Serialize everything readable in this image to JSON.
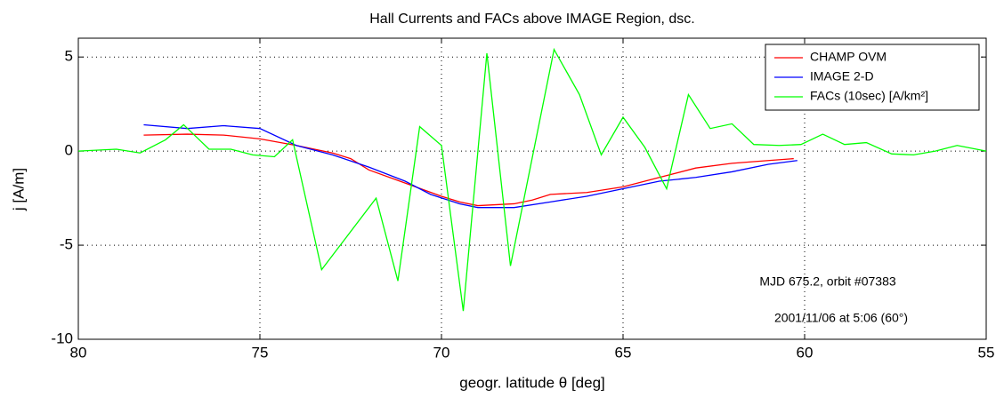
{
  "chart_data": {
    "type": "line",
    "title": "Hall Currents and FACs above IMAGE Region, dsc.",
    "x_label": "geogr. latitude θ [deg]",
    "y_label": "j [A/m]",
    "xlim": [
      80,
      55
    ],
    "ylim": [
      -10,
      6
    ],
    "xticks": [
      80,
      75,
      70,
      65,
      60,
      55
    ],
    "yticks": [
      -10,
      -5,
      0,
      5
    ],
    "grid": true,
    "legend": "upper right",
    "annotations": [
      "MJD 675.2, orbit #07383",
      "2001/11/06 at  5:06 (60°)"
    ],
    "series": [
      {
        "name": "CHAMP OVM",
        "color": "#ff0000",
        "x": [
          78.2,
          77,
          76,
          75,
          74,
          73,
          72.5,
          72,
          71,
          70,
          69.5,
          69,
          68,
          67.5,
          67,
          66,
          65,
          64,
          63,
          62,
          61,
          60.3
        ],
        "values": [
          0.85,
          0.9,
          0.85,
          0.65,
          0.3,
          -0.1,
          -0.4,
          -1.0,
          -1.7,
          -2.4,
          -2.7,
          -2.9,
          -2.8,
          -2.6,
          -2.3,
          -2.2,
          -1.9,
          -1.4,
          -0.9,
          -0.65,
          -0.5,
          -0.4
        ]
      },
      {
        "name": " IMAGE 2-D",
        "color": "#0000ff",
        "x": [
          78.2,
          77,
          76,
          75,
          74,
          73,
          72,
          71,
          70.3,
          69.5,
          69,
          68,
          67,
          66,
          65,
          64,
          63,
          62,
          61,
          60.2
        ],
        "values": [
          1.4,
          1.2,
          1.35,
          1.2,
          0.3,
          -0.2,
          -0.85,
          -1.6,
          -2.3,
          -2.8,
          -3.0,
          -3.0,
          -2.7,
          -2.4,
          -2.0,
          -1.6,
          -1.4,
          -1.1,
          -0.7,
          -0.5
        ]
      },
      {
        "name": "FACs (10sec) [A/km²]",
        "color": "#00ff00",
        "x": [
          80,
          78.95,
          78.3,
          77.6,
          77.1,
          76.4,
          75.8,
          75.2,
          74.6,
          74.1,
          73.3,
          71.8,
          71.2,
          70.6,
          70,
          69.4,
          68.75,
          68.1,
          66.9,
          66.2,
          65.6,
          65,
          64.4,
          63.8,
          63.2,
          62.6,
          62,
          61.4,
          60.7,
          60.1,
          59.5,
          58.9,
          58.3,
          57.6,
          57,
          56.4,
          55.8,
          55
        ],
        "values": [
          0,
          0.1,
          -0.1,
          0.6,
          1.4,
          0.1,
          0.1,
          -0.2,
          -0.3,
          0.6,
          -6.3,
          -2.5,
          -6.9,
          1.3,
          0.3,
          -8.5,
          5.2,
          -6.1,
          5.4,
          3.0,
          -0.2,
          1.8,
          0.2,
          -2.0,
          3.0,
          1.2,
          1.45,
          0.35,
          0.3,
          0.35,
          0.9,
          0.35,
          0.45,
          -0.15,
          -0.2,
          0.0,
          0.3,
          0.0
        ]
      }
    ]
  }
}
